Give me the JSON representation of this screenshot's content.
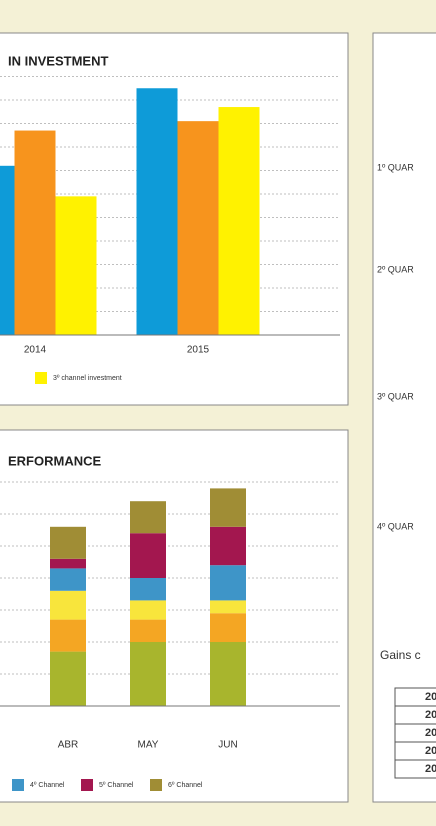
{
  "chart_data": [
    {
      "type": "bar",
      "title": "IN INVESTMENT",
      "categories": [
        "2014",
        "2015"
      ],
      "series": [
        {
          "color": "#0e9bd8",
          "values": [
            72,
            105
          ]
        },
        {
          "color": "#f7941d",
          "values": [
            87,
            91
          ]
        },
        {
          "name": "3º channel investment",
          "color": "#fff200",
          "values": [
            59,
            97
          ]
        }
      ],
      "ylim": [
        0,
        110
      ],
      "yticks": [
        0,
        10,
        20,
        30,
        40,
        50,
        60,
        70,
        80,
        90,
        100,
        110
      ],
      "grid": true
    },
    {
      "type": "stacked_bar",
      "title": "ERFORMANCE",
      "categories": [
        "ABR",
        "MAY",
        "JUN"
      ],
      "series": [
        {
          "color": "#a8b52d",
          "values": [
            17,
            20,
            20
          ]
        },
        {
          "color": "#f4a623",
          "values": [
            10,
            7,
            9
          ]
        },
        {
          "color": "#f8e53c",
          "values": [
            9,
            6,
            4
          ]
        },
        {
          "name": "4º Channel",
          "color": "#3e95c8",
          "values": [
            7,
            7,
            11
          ]
        },
        {
          "name": "5º Channel",
          "color": "#a3174f",
          "values": [
            3,
            14,
            12
          ]
        },
        {
          "name": "6º Channel",
          "color": "#a08d35",
          "values": [
            10,
            10,
            12
          ]
        }
      ],
      "ylim": [
        0,
        70
      ],
      "yticks": [
        0,
        10,
        20,
        30,
        40,
        50,
        60,
        70
      ],
      "grid": true
    }
  ],
  "side_panel": {
    "quarters": [
      "1º QUAR",
      "2º QUAR",
      "3º QUAR",
      "4º QUAR"
    ],
    "caption": "Gains c",
    "table": {
      "rows": [
        [
          "20"
        ],
        [
          "20"
        ],
        [
          "20"
        ],
        [
          "20"
        ],
        [
          "20"
        ]
      ]
    }
  }
}
